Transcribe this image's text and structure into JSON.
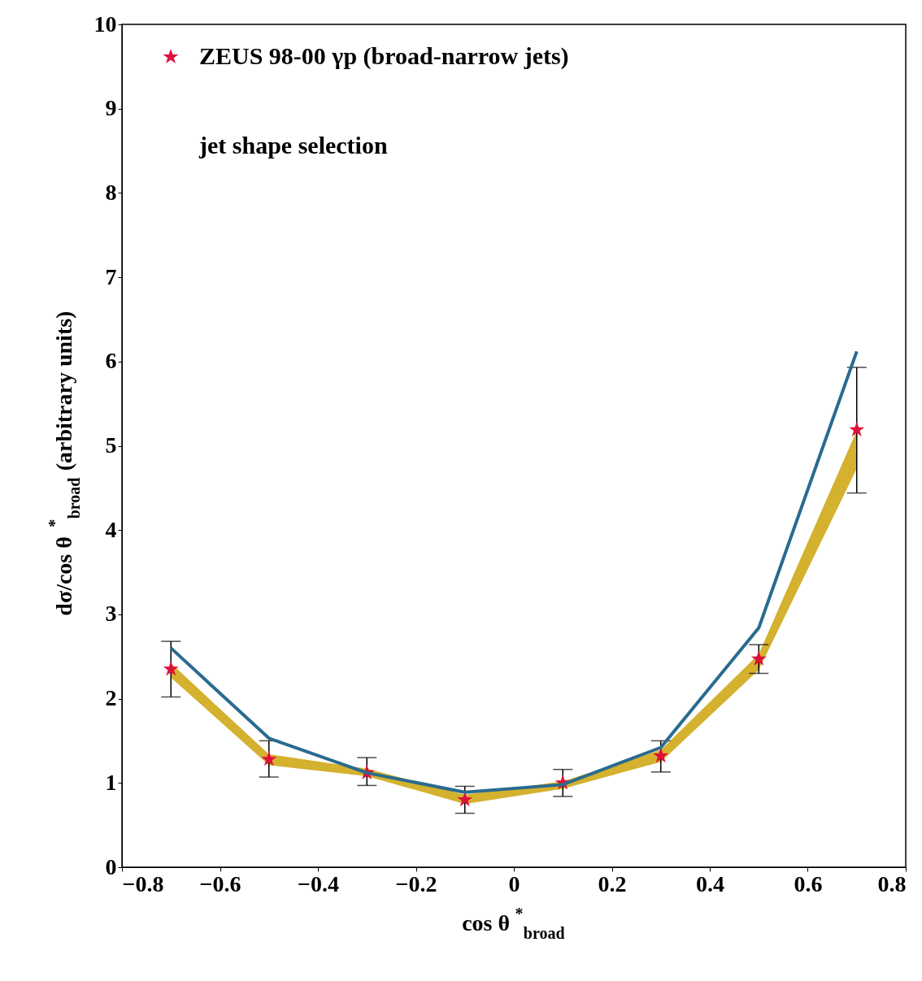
{
  "chart_data": {
    "type": "line",
    "xlabel": "cos θ$^{*}$$_{broad}$",
    "ylabel": "dσ/cos θ$^{*}$$_{broad}$ (arbitrary units)",
    "x": [
      -0.7,
      -0.5,
      -0.3,
      -0.1,
      0.1,
      0.3,
      0.5,
      0.7
    ],
    "series": [
      {
        "type": "area",
        "color": "#d4b12e",
        "values": [
          null,
          null,
          null,
          null,
          null,
          null,
          null,
          null
        ],
        "lower": [
          2.25,
          1.21,
          1.08,
          0.75,
          0.93,
          1.25,
          2.34,
          4.73
        ],
        "upper": [
          2.42,
          1.34,
          1.17,
          0.86,
          1.02,
          1.39,
          2.53,
          5.18
        ]
      },
      {
        "color": "#2a6b8f",
        "values": [
          2.6,
          1.53,
          1.12,
          0.89,
          0.98,
          1.42,
          2.84,
          6.12
        ]
      },
      {
        "type": "scatter",
        "name": "ZEUS 98-00 γp (broad-narrow jets)",
        "color": "#e0103c",
        "marker": "star",
        "values": [
          2.35,
          1.28,
          1.12,
          0.8,
          1.0,
          1.32,
          2.47,
          5.19
        ],
        "errors": [
          [
            2.02,
            2.68
          ],
          [
            1.07,
            1.5
          ],
          [
            0.97,
            1.3
          ],
          [
            0.64,
            0.96
          ],
          [
            0.84,
            1.16
          ],
          [
            1.13,
            1.5
          ],
          [
            2.3,
            2.64
          ],
          [
            4.44,
            5.93
          ]
        ]
      }
    ],
    "annotations": [
      "jet shape selection"
    ],
    "xlim": [
      -0.8,
      0.8
    ],
    "xticks": [
      -0.8,
      -0.6,
      -0.4,
      -0.2,
      0,
      0.2,
      0.4,
      0.6,
      0.8
    ],
    "ylim": [
      0,
      10
    ],
    "yticks": [
      0,
      1,
      2,
      3,
      4,
      5,
      6,
      7,
      8,
      9,
      10
    ],
    "grid": false,
    "legend": "top left"
  }
}
